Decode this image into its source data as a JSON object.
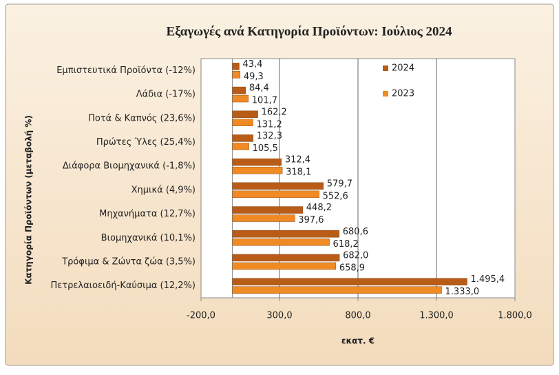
{
  "chart_data": {
    "type": "bar",
    "orientation": "horizontal",
    "title": "Εξαγωγές ανά Κατηγορία Προϊόντων:  Ιούλιος 2024",
    "x_label": "εκατ. €",
    "y_label": "Κατηγορία Προϊόντων (μεταβολή %)",
    "categories": [
      "Εμπιστευτικά Προϊόντα (-12%)",
      "Λάδια (-17%)",
      "Ποτά & Καπνός (23,6%)",
      "Πρώτες Ύλες (25,4%)",
      "Διάφορα Βιομηχανικά (-1,8%)",
      "Χημικά (4,9%)",
      "Μηχανήματα (12,7%)",
      "Βιομηχανικά (10,1%)",
      "Τρόφιμα & Ζώντα ζώα (3,5%)",
      "Πετρελαιοειδή-Καύσιμα (12,2%)"
    ],
    "series": [
      {
        "name": "2024",
        "color": "#b85c17",
        "values": [
          43.4,
          84.4,
          162.2,
          132.3,
          312.4,
          579.7,
          448.2,
          680.6,
          682.0,
          1495.4
        ],
        "value_labels": [
          "43,4",
          "84,4",
          "162,2",
          "132,3",
          "312,4",
          "579,7",
          "448,2",
          "680,6",
          "682,0",
          "1.495,4"
        ]
      },
      {
        "name": "2023",
        "color": "#f08a24",
        "values": [
          49.3,
          101.7,
          131.2,
          105.5,
          318.1,
          552.6,
          397.6,
          618.2,
          658.9,
          1333.0
        ],
        "value_labels": [
          "49,3",
          "101,7",
          "131,2",
          "105,5",
          "318,1",
          "552,6",
          "397,6",
          "618,2",
          "658,9",
          "1.333,0"
        ]
      }
    ],
    "xlim": [
      -200,
      1800
    ],
    "xticks": [
      {
        "value": -200,
        "label": "-200,0"
      },
      {
        "value": 300,
        "label": "300,0"
      },
      {
        "value": 800,
        "label": "800,0"
      },
      {
        "value": 1300,
        "label": "1.300,0"
      },
      {
        "value": 1800,
        "label": "1.800,0"
      }
    ],
    "grid": true
  }
}
